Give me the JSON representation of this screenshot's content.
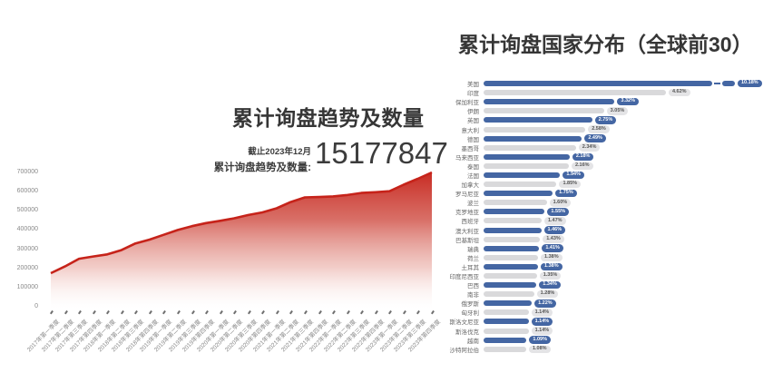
{
  "left_chart": {
    "title": "累计询盘趋势及数量",
    "as_of": "截止2023年12月",
    "stat_label": "累计询盘趋势及数量:",
    "stat_value": "15177847",
    "accent_color": "#c6231a"
  },
  "right_chart": {
    "title": "累计询盘国家分布（全球前30）",
    "bar_color_primary": "#4466a3",
    "bar_color_secondary": "#d9d9db"
  },
  "chart_data": [
    {
      "type": "area",
      "title": "累计询盘趋势及数量",
      "xlabel": "",
      "ylabel": "",
      "ylim": [
        0,
        700000
      ],
      "yticks": [
        0,
        100000,
        200000,
        300000,
        400000,
        500000,
        600000,
        700000
      ],
      "grid": false,
      "line_color": "#c6231a",
      "x": [
        "2017年第一季度",
        "2017年第二季度",
        "2017年第三季度",
        "2017年第四季度",
        "2018年第一季度",
        "2018年第二季度",
        "2018年第三季度",
        "2018年第四季度",
        "2019年第一季度",
        "2019年第二季度",
        "2019年第三季度",
        "2019年第四季度",
        "2020年第一季度",
        "2020年第二季度",
        "2020年第三季度",
        "2020年第四季度",
        "2021年第一季度",
        "2021年第二季度",
        "2021年第三季度",
        "2021年第四季度",
        "2022年第一季度",
        "2022年第二季度",
        "2022年第三季度",
        "2022年第四季度",
        "2023年第一季度",
        "2023年第二季度",
        "2023年第三季度",
        "2023年第四季度"
      ],
      "values": [
        175000,
        210000,
        250000,
        262000,
        273000,
        295000,
        330000,
        350000,
        375000,
        400000,
        420000,
        436000,
        448000,
        461000,
        478000,
        492000,
        513000,
        546000,
        570000,
        572000,
        575000,
        582000,
        593000,
        597000,
        602000,
        636000,
        667000,
        700000
      ]
    },
    {
      "type": "bar",
      "orientation": "horizontal",
      "title": "累计询盘国家分布（全球前30）",
      "unit": "%",
      "truncated_first_bar": true,
      "legend_position": "none",
      "categories": [
        "美国",
        "印度",
        "保加利亚",
        "伊朗",
        "英国",
        "意大利",
        "德国",
        "墨西哥",
        "马来西亚",
        "泰国",
        "法国",
        "加拿大",
        "罗马尼亚",
        "波兰",
        "克罗地亚",
        "西班牙",
        "澳大利亚",
        "巴基斯坦",
        "瑞典",
        "荷兰",
        "土耳其",
        "印度尼西亚",
        "巴西",
        "南非",
        "俄罗斯",
        "匈牙利",
        "斯洛文尼亚",
        "斯洛伐克",
        "越南",
        "沙特阿拉伯"
      ],
      "values": [
        10.18,
        4.62,
        3.32,
        3.05,
        2.75,
        2.58,
        2.49,
        2.34,
        2.18,
        2.16,
        1.94,
        1.85,
        1.75,
        1.6,
        1.55,
        1.47,
        1.46,
        1.43,
        1.41,
        1.38,
        1.38,
        1.35,
        1.34,
        1.28,
        1.22,
        1.14,
        1.14,
        1.14,
        1.09,
        1.08
      ]
    }
  ]
}
